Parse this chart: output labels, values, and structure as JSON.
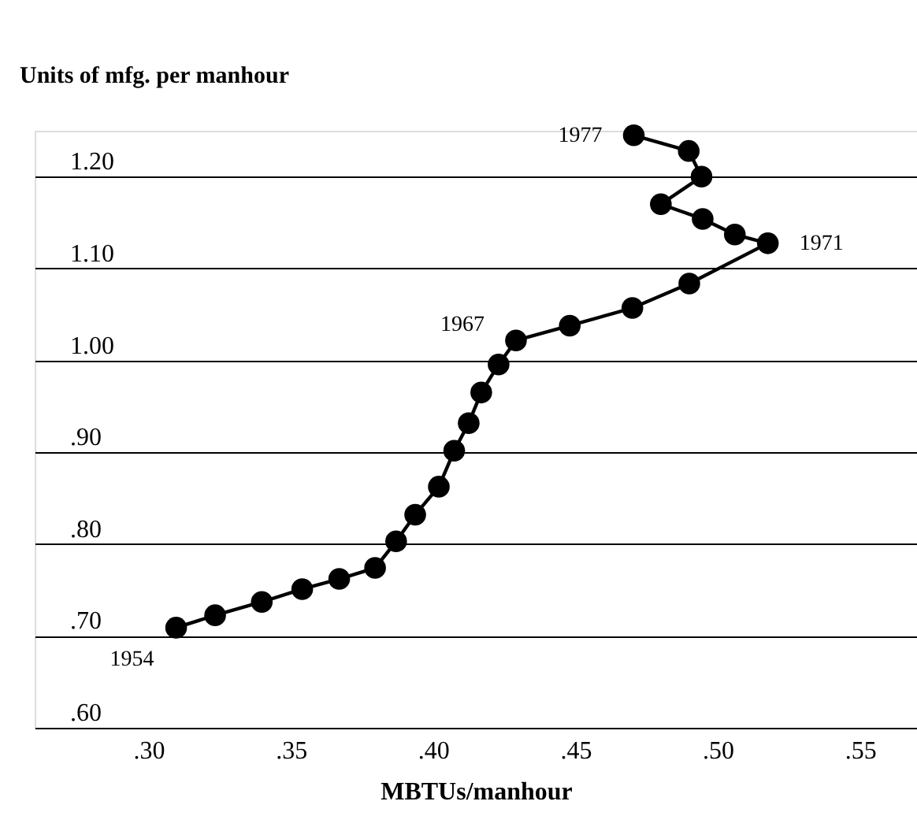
{
  "chart_data": {
    "type": "line",
    "xlabel": "MBTUs/manhour",
    "ylabel": "Units of mfg. per manhour",
    "x": [
      0.3097,
      0.3234,
      0.3398,
      0.354,
      0.367,
      0.3796,
      0.387,
      0.3937,
      0.402,
      0.4074,
      0.4125,
      0.4169,
      0.423,
      0.4291,
      0.448,
      0.47,
      0.49,
      0.5176,
      0.506,
      0.4947,
      0.48,
      0.4943,
      0.4898,
      0.4705
    ],
    "series": [
      {
        "color": "#000000",
        "values": [
          0.709,
          0.7225,
          0.737,
          0.751,
          0.762,
          0.774,
          0.803,
          0.832,
          0.8625,
          0.9016,
          0.9317,
          0.965,
          0.9956,
          1.0217,
          1.0378,
          1.057,
          1.0836,
          1.1275,
          1.137,
          1.154,
          1.17,
          1.2,
          1.228,
          1.245
        ]
      }
    ],
    "marker": "circle",
    "line_style": "solid",
    "grid": "y",
    "xlim": [
      0.26,
      0.57
    ],
    "ylim": [
      0.6,
      1.25
    ],
    "xticks": [
      {
        "value": 0.3,
        "label": ".30"
      },
      {
        "value": 0.35,
        "label": ".35"
      },
      {
        "value": 0.4,
        "label": ".40"
      },
      {
        "value": 0.45,
        "label": ".45"
      },
      {
        "value": 0.5,
        "label": ".50"
      },
      {
        "value": 0.55,
        "label": ".55"
      }
    ],
    "yticks": [
      {
        "value": 0.6,
        "label": ".60"
      },
      {
        "value": 0.7,
        "label": ".70"
      },
      {
        "value": 0.8,
        "label": ".80"
      },
      {
        "value": 0.9,
        "label": ".90"
      },
      {
        "value": 1.0,
        "label": "1.00"
      },
      {
        "value": 1.1,
        "label": "1.10"
      },
      {
        "value": 1.2,
        "label": "1.20"
      }
    ],
    "annotations": [
      {
        "text": "1954",
        "x": 0.3097,
        "y": 0.709
      },
      {
        "text": "1967",
        "x": 0.4291,
        "y": 1.0217
      },
      {
        "text": "1971",
        "x": 0.5176,
        "y": 1.1275
      },
      {
        "text": "1977",
        "x": 0.4705,
        "y": 1.245
      }
    ]
  }
}
